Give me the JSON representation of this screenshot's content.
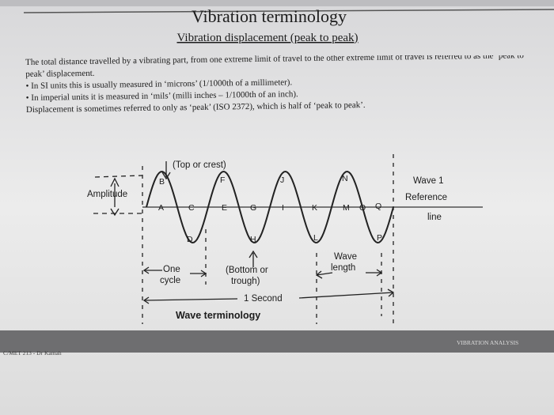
{
  "slide": {
    "title": "Vibration terminology",
    "subtitle": "Vibration displacement (peak to peak)",
    "paragraph": "The total distance travelled by a vibrating part, from one extreme limit of travel to the other extreme limit of travel is referred to as the ‘peak to peak’ displacement.",
    "bullets": [
      "In SI units this is usually measured in ‘microns’ (1/1000th of a millimeter).",
      "In imperial units it is measured in ‘mils’ (milli inches – 1/1000th of an inch)."
    ],
    "note": "Displacement is sometimes referred to only as ‘peak’ (ISO 2372), which is half of ‘peak to peak’."
  },
  "diagram": {
    "crest": "(Top or crest)",
    "amplitude": "Amplitude",
    "wave": "Wave 1",
    "reference": "Reference",
    "line": "line",
    "one": "One",
    "cycle": "cycle",
    "trough_1": "(Bottom or",
    "trough_2": "trough)",
    "wavelength_1": "Wave",
    "wavelength_2": "length",
    "second": "1 Second",
    "caption": "Wave terminology",
    "points": [
      "A",
      "B",
      "C",
      "D",
      "E",
      "F",
      "G",
      "H",
      "I",
      "J",
      "K",
      "L",
      "M",
      "N",
      "O",
      "P",
      "Q"
    ]
  },
  "footer": {
    "left": "C/MET 213 - Dr Kamah",
    "right": "VIBRATION ANALYSIS"
  }
}
